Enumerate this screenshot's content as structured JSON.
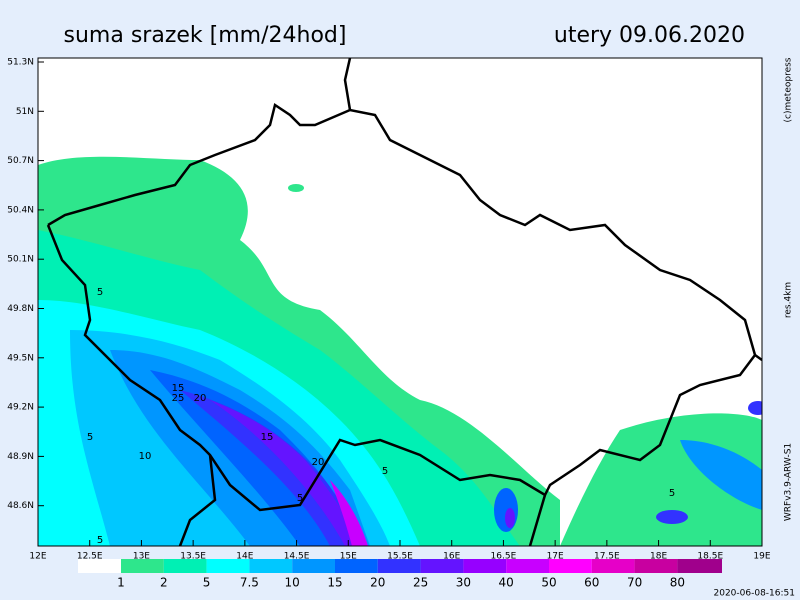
{
  "header": {
    "title": "suma srazek [mm/24hod]",
    "date": "utery 09.06.2020"
  },
  "map": {
    "lat_ticks": [
      "51.3N",
      "51N",
      "50.7N",
      "50.4N",
      "50.1N",
      "49.8N",
      "49.5N",
      "49.2N",
      "48.9N",
      "48.6N"
    ],
    "lon_ticks": [
      "12E",
      "12.5E",
      "13E",
      "13.5E",
      "14E",
      "14.5E",
      "15E",
      "15.5E",
      "16E",
      "16.5E",
      "17E",
      "17.5E",
      "18E",
      "18.5E",
      "19E"
    ],
    "contour_labels": [
      "5",
      "15",
      "20",
      "25",
      "5",
      "10",
      "15",
      "20",
      "5",
      "5",
      "5",
      "5"
    ]
  },
  "legend": {
    "levels": [
      "1",
      "2",
      "5",
      "7.5",
      "10",
      "15",
      "20",
      "25",
      "30",
      "40",
      "50",
      "60",
      "70",
      "80"
    ],
    "colors": [
      "#ffffff",
      "#2ee68c",
      "#00f0b4",
      "#00ffff",
      "#00c8ff",
      "#0096ff",
      "#0064ff",
      "#3232ff",
      "#6414ff",
      "#9600ff",
      "#c800ff",
      "#ff00ff",
      "#e600c8",
      "#c800a0",
      "#a0008c"
    ]
  },
  "side": {
    "credit": "(c)meteopress",
    "resolution": "res.4km",
    "model": "WRFv3.9-ARW-S1"
  },
  "footer": {
    "timestamp": "2020-06-08-16:51"
  }
}
